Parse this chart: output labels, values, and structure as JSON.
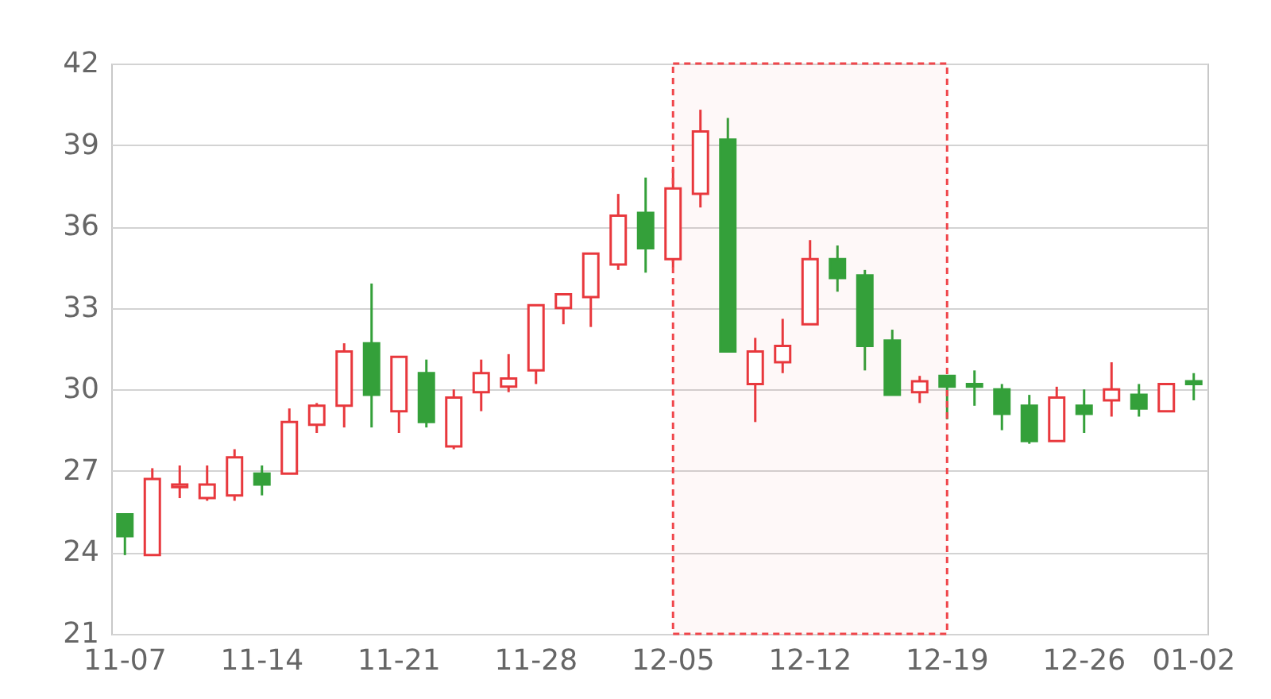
{
  "chart_data": {
    "type": "candlestick",
    "categories": [
      "11-07",
      null,
      null,
      null,
      null,
      "11-14",
      null,
      null,
      null,
      null,
      "11-21",
      null,
      null,
      null,
      null,
      "11-28",
      null,
      null,
      null,
      null,
      "12-05",
      null,
      null,
      null,
      null,
      "12-12",
      null,
      null,
      null,
      null,
      "12-19",
      null,
      null,
      null,
      null,
      "12-26",
      null,
      null,
      null,
      "01-02"
    ],
    "ohlc": [
      [
        25.4,
        25.4,
        23.9,
        24.6
      ],
      [
        23.9,
        27.1,
        23.9,
        26.7
      ],
      [
        26.4,
        27.2,
        26.0,
        26.5
      ],
      [
        26.0,
        27.2,
        25.9,
        26.5
      ],
      [
        26.1,
        27.8,
        25.9,
        27.5
      ],
      [
        26.9,
        27.2,
        26.1,
        26.5
      ],
      [
        26.9,
        29.3,
        26.9,
        28.8
      ],
      [
        28.7,
        29.5,
        28.4,
        29.4
      ],
      [
        29.4,
        31.7,
        28.6,
        31.4
      ],
      [
        31.7,
        33.9,
        28.6,
        29.8
      ],
      [
        29.2,
        31.2,
        28.4,
        31.2
      ],
      [
        30.6,
        31.1,
        28.6,
        28.8
      ],
      [
        27.9,
        30.0,
        27.8,
        29.7
      ],
      [
        29.9,
        31.1,
        29.2,
        30.6
      ],
      [
        30.1,
        31.3,
        29.9,
        30.4
      ],
      [
        30.7,
        33.1,
        30.2,
        33.1
      ],
      [
        33.0,
        33.5,
        32.4,
        33.5
      ],
      [
        33.4,
        35.0,
        32.3,
        35.0
      ],
      [
        34.6,
        37.2,
        34.4,
        36.4
      ],
      [
        36.5,
        37.8,
        34.3,
        35.2
      ],
      [
        34.8,
        38.1,
        34.5,
        37.4
      ],
      [
        37.2,
        40.3,
        36.7,
        39.5
      ],
      [
        39.2,
        40.0,
        31.4,
        31.4
      ],
      [
        30.2,
        31.9,
        28.8,
        31.4
      ],
      [
        31.0,
        32.6,
        30.6,
        31.6
      ],
      [
        32.4,
        35.5,
        32.4,
        34.8
      ],
      [
        34.8,
        35.3,
        33.6,
        34.1
      ],
      [
        34.2,
        34.4,
        30.7,
        31.6
      ],
      [
        31.8,
        32.2,
        29.8,
        29.8
      ],
      [
        29.9,
        30.5,
        29.5,
        30.3
      ],
      [
        30.5,
        30.5,
        28.9,
        30.1
      ],
      [
        30.2,
        30.7,
        29.4,
        30.1
      ],
      [
        30.0,
        30.2,
        28.5,
        29.1
      ],
      [
        29.4,
        29.8,
        28.0,
        28.1
      ],
      [
        28.1,
        30.1,
        28.1,
        29.7
      ],
      [
        29.4,
        30.0,
        28.4,
        29.1
      ],
      [
        29.6,
        31.0,
        29.0,
        30.0
      ],
      [
        29.8,
        30.2,
        29.0,
        29.3
      ],
      [
        29.2,
        30.2,
        29.2,
        30.2
      ],
      [
        30.3,
        30.6,
        29.6,
        30.2
      ]
    ],
    "colors": [
      "#34a03a",
      "#e8383d",
      "#e8383d",
      "#e8383d",
      "#e8383d",
      "#34a03a",
      "#e8383d",
      "#e8383d",
      "#e8383d",
      "#34a03a",
      "#e8383d",
      "#34a03a",
      "#e8383d",
      "#e8383d",
      "#e8383d",
      "#e8383d",
      "#e8383d",
      "#e8383d",
      "#e8383d",
      "#34a03a",
      "#e8383d",
      "#e8383d",
      "#34a03a",
      "#e8383d",
      "#e8383d",
      "#e8383d",
      "#34a03a",
      "#34a03a",
      "#34a03a",
      "#e8383d",
      "#34a03a",
      "#34a03a",
      "#34a03a",
      "#34a03a",
      "#e8383d",
      "#34a03a",
      "#e8383d",
      "#34a03a",
      "#e8383d",
      "#34a03a"
    ],
    "ylim": [
      21,
      42
    ],
    "yticks": [
      21,
      24,
      27,
      30,
      33,
      36,
      39,
      42
    ],
    "grid": "y",
    "bands": [
      {
        "axis": "x",
        "from": "12-05",
        "to": "12-19",
        "color": "#f0464b"
      }
    ]
  }
}
